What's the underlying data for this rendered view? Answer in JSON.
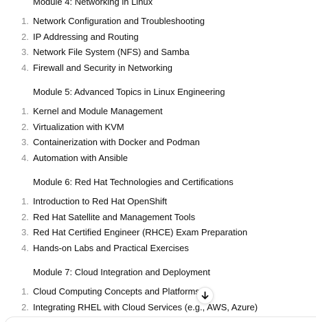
{
  "modules": [
    {
      "title": "Module 4: Networking in Linux",
      "items": [
        {
          "num": "1.",
          "text": "Network Configuration and Troubleshooting"
        },
        {
          "num": "2.",
          "text": "IP Addressing and Routing"
        },
        {
          "num": "3.",
          "text": "Network File System (NFS) and Samba"
        },
        {
          "num": "4.",
          "text": "Firewall and Security in Networking"
        }
      ]
    },
    {
      "title": "Module 5: Advanced Topics in Linux Engineering",
      "items": [
        {
          "num": "1.",
          "text": "Kernel and Module Management"
        },
        {
          "num": "2.",
          "text": "Virtualization with KVM"
        },
        {
          "num": "3.",
          "text": "Containerization with Docker and Podman"
        },
        {
          "num": "4.",
          "text": "Automation with Ansible"
        }
      ]
    },
    {
      "title": "Module 6: Red Hat Technologies and Certifications",
      "items": [
        {
          "num": "1.",
          "text": "Introduction to Red Hat OpenShift"
        },
        {
          "num": "2.",
          "text": "Red Hat Satellite and Management Tools"
        },
        {
          "num": "3.",
          "text": "Red Hat Certified Engineer (RHCE) Exam Preparation"
        },
        {
          "num": "4.",
          "text": "Hands-on Labs and Practical Exercises"
        }
      ]
    },
    {
      "title": "Module 7: Cloud Integration and Deployment",
      "items": [
        {
          "num": "1.",
          "text": "Cloud Computing Concepts and Platforms"
        },
        {
          "num": "2.",
          "text": "Integrating RHEL with Cloud Services (e.g., AWS, Azure)"
        }
      ]
    }
  ],
  "scroll_button": {
    "icon": "arrow-down-icon"
  }
}
